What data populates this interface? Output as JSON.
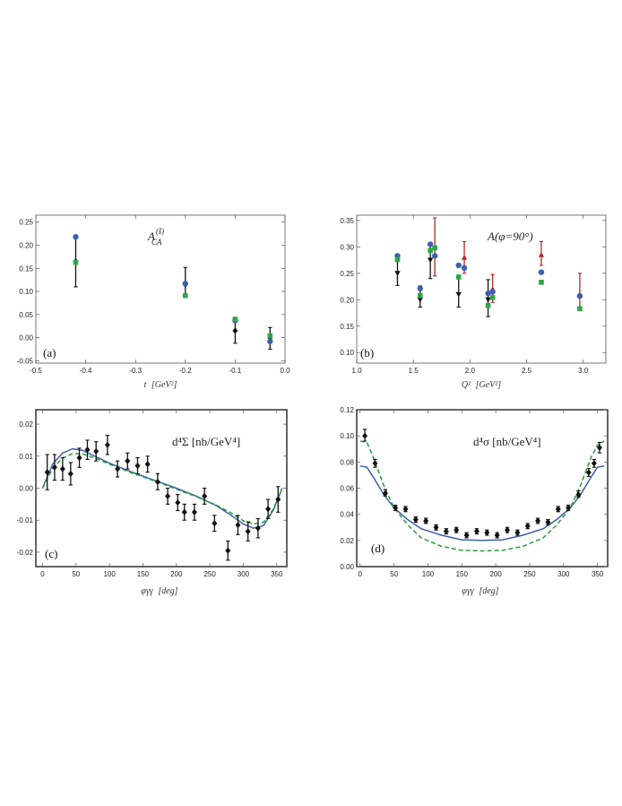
{
  "chart_data": [
    {
      "id": "a",
      "type": "scatter",
      "panel_label": "(a)",
      "annotation": "A_CA^(I)",
      "annotation_main": "A",
      "annotation_sub": "CA",
      "annotation_sup": "(I)",
      "xlabel": "t [GeV²]",
      "xlabel_var": "t",
      "xlabel_unit": "[GeV²]",
      "xlim": [
        -0.5,
        0.0
      ],
      "ylim": [
        -0.055,
        0.265
      ],
      "xticks": [
        -0.5,
        -0.4,
        -0.3,
        -0.2,
        -0.1,
        0.0
      ],
      "xtick_labels": [
        "-0.5",
        "-0.4",
        "-0.3",
        "-0.2",
        "-0.1",
        "0.0"
      ],
      "yticks": [
        -0.05,
        0.0,
        0.05,
        0.1,
        0.15,
        0.2,
        0.25
      ],
      "ytick_labels": [
        "-0.05",
        "0.00",
        "0.05",
        "0.10",
        "0.15",
        "0.20",
        "0.25"
      ],
      "series": [
        {
          "name": "data",
          "marker": "diamond",
          "color": "#111111",
          "points": [
            {
              "x": -0.42,
              "y": 0.165,
              "lo": 0.11,
              "hi": 0.22
            },
            {
              "x": -0.2,
              "y": 0.115,
              "lo": 0.09,
              "hi": 0.152
            },
            {
              "x": -0.1,
              "y": 0.015,
              "lo": -0.012,
              "hi": 0.04
            },
            {
              "x": -0.03,
              "y": 0.0,
              "lo": -0.025,
              "hi": 0.022
            }
          ]
        },
        {
          "name": "blue",
          "marker": "circle",
          "color": "#3f5fae",
          "points": [
            {
              "x": -0.42,
              "y": 0.218
            },
            {
              "x": -0.2,
              "y": 0.117
            },
            {
              "x": -0.1,
              "y": 0.037
            },
            {
              "x": -0.03,
              "y": -0.008
            }
          ]
        },
        {
          "name": "green",
          "marker": "square",
          "color": "#2aa84a",
          "points": [
            {
              "x": -0.42,
              "y": 0.163
            },
            {
              "x": -0.2,
              "y": 0.091
            },
            {
              "x": -0.1,
              "y": 0.04
            },
            {
              "x": -0.03,
              "y": 0.004
            }
          ]
        }
      ],
      "curves": []
    },
    {
      "id": "b",
      "type": "scatter",
      "panel_label": "(b)",
      "annotation": "A(φ=90°)",
      "annotation_main": "A(φ=90°)",
      "xlabel": "Q² [GeV²]",
      "xlabel_var": "Q²",
      "xlabel_unit": "[GeV²]",
      "xlim": [
        1.0,
        3.2
      ],
      "ylim": [
        0.08,
        0.36
      ],
      "xticks": [
        1.0,
        1.5,
        2.0,
        2.5,
        3.0
      ],
      "xtick_labels": [
        "1.0",
        "1.5",
        "2.0",
        "2.5",
        "3.0"
      ],
      "yticks": [
        0.1,
        0.15,
        0.2,
        0.25,
        0.3,
        0.35
      ],
      "ytick_labels": [
        "0.10",
        "0.15",
        "0.20",
        "0.25",
        "0.30",
        "0.35"
      ],
      "series": [
        {
          "name": "data-black",
          "marker": "triangle-down",
          "color": "#111111",
          "points": [
            {
              "x": 1.36,
              "y": 0.25,
              "lo": 0.227,
              "hi": 0.282
            },
            {
              "x": 1.56,
              "y": 0.2,
              "lo": 0.186,
              "hi": 0.226
            },
            {
              "x": 1.65,
              "y": 0.275,
              "lo": 0.24,
              "hi": 0.305
            },
            {
              "x": 1.9,
              "y": 0.21,
              "lo": 0.186,
              "hi": 0.24
            },
            {
              "x": 2.16,
              "y": 0.2,
              "lo": 0.168,
              "hi": 0.238
            }
          ]
        },
        {
          "name": "data-red",
          "marker": "triangle-up",
          "color": "#b02a2a",
          "points": [
            {
              "x": 1.69,
              "y": 0.3,
              "lo": 0.245,
              "hi": 0.355
            },
            {
              "x": 1.95,
              "y": 0.28,
              "lo": 0.25,
              "hi": 0.31
            },
            {
              "x": 2.2,
              "y": 0.22,
              "lo": 0.195,
              "hi": 0.248
            },
            {
              "x": 2.63,
              "y": 0.285,
              "lo": 0.265,
              "hi": 0.31
            },
            {
              "x": 2.97,
              "y": 0.21,
              "lo": 0.18,
              "hi": 0.25
            }
          ]
        },
        {
          "name": "blue",
          "marker": "circle",
          "color": "#3f5fae",
          "points": [
            {
              "x": 1.36,
              "y": 0.283
            },
            {
              "x": 1.56,
              "y": 0.221
            },
            {
              "x": 1.65,
              "y": 0.305
            },
            {
              "x": 1.69,
              "y": 0.283
            },
            {
              "x": 1.9,
              "y": 0.265
            },
            {
              "x": 1.95,
              "y": 0.26
            },
            {
              "x": 2.16,
              "y": 0.212
            },
            {
              "x": 2.2,
              "y": 0.215
            },
            {
              "x": 2.63,
              "y": 0.252
            },
            {
              "x": 2.97,
              "y": 0.207
            }
          ]
        },
        {
          "name": "green",
          "marker": "square",
          "color": "#2aa84a",
          "points": [
            {
              "x": 1.36,
              "y": 0.276
            },
            {
              "x": 1.56,
              "y": 0.208
            },
            {
              "x": 1.65,
              "y": 0.293
            },
            {
              "x": 1.69,
              "y": 0.298
            },
            {
              "x": 1.9,
              "y": 0.243
            },
            {
              "x": 2.16,
              "y": 0.189
            },
            {
              "x": 2.2,
              "y": 0.204
            },
            {
              "x": 2.63,
              "y": 0.233
            },
            {
              "x": 2.97,
              "y": 0.183
            }
          ]
        }
      ],
      "curves": []
    },
    {
      "id": "c",
      "type": "line",
      "panel_label": "(c)",
      "annotation": "d⁴Σ [nb/GeV⁴]",
      "annotation_main": "d⁴Σ [nb/GeV⁴]",
      "xlabel": "φγγ [deg]",
      "xlabel_var": "φγγ",
      "xlabel_unit": "[deg]",
      "xlim": [
        -10,
        365
      ],
      "ylim": [
        -0.0245,
        0.0245
      ],
      "xticks": [
        0,
        50,
        100,
        150,
        200,
        250,
        300,
        350
      ],
      "xtick_labels": [
        "0",
        "50",
        "100",
        "150",
        "200",
        "250",
        "300",
        "350"
      ],
      "yticks": [
        -0.02,
        -0.01,
        0.0,
        0.01,
        0.02
      ],
      "ytick_labels": [
        "-0.02",
        "-0.01",
        "0.00",
        "0.01",
        "0.02"
      ],
      "series": [
        {
          "name": "data",
          "marker": "diamond",
          "color": "#111111",
          "points": [
            {
              "x": 7,
              "y": 0.005,
              "lo": -0.0005,
              "hi": 0.0105
            },
            {
              "x": 18,
              "y": 0.0065,
              "lo": 0.0025,
              "hi": 0.0105
            },
            {
              "x": 30,
              "y": 0.006,
              "lo": 0.0025,
              "hi": 0.0095
            },
            {
              "x": 42,
              "y": 0.0045,
              "lo": 0.001,
              "hi": 0.008
            },
            {
              "x": 55,
              "y": 0.0095,
              "lo": 0.0065,
              "hi": 0.0125
            },
            {
              "x": 67,
              "y": 0.012,
              "lo": 0.009,
              "hi": 0.015
            },
            {
              "x": 80,
              "y": 0.0115,
              "lo": 0.0085,
              "hi": 0.0145
            },
            {
              "x": 97,
              "y": 0.0135,
              "lo": 0.0105,
              "hi": 0.0165
            },
            {
              "x": 112,
              "y": 0.006,
              "lo": 0.0035,
              "hi": 0.0085
            },
            {
              "x": 127,
              "y": 0.0085,
              "lo": 0.006,
              "hi": 0.011
            },
            {
              "x": 142,
              "y": 0.007,
              "lo": 0.0045,
              "hi": 0.0095
            },
            {
              "x": 157,
              "y": 0.0075,
              "lo": 0.005,
              "hi": 0.01
            },
            {
              "x": 172,
              "y": 0.002,
              "lo": -0.0005,
              "hi": 0.0045
            },
            {
              "x": 187,
              "y": -0.0025,
              "lo": -0.005,
              "hi": 0.0
            },
            {
              "x": 202,
              "y": -0.0045,
              "lo": -0.007,
              "hi": -0.002
            },
            {
              "x": 212,
              "y": -0.0075,
              "lo": -0.01,
              "hi": -0.005
            },
            {
              "x": 227,
              "y": -0.0075,
              "lo": -0.01,
              "hi": -0.005
            },
            {
              "x": 242,
              "y": -0.0025,
              "lo": -0.005,
              "hi": 0.0
            },
            {
              "x": 257,
              "y": -0.011,
              "lo": -0.0135,
              "hi": -0.0085
            },
            {
              "x": 277,
              "y": -0.0195,
              "lo": -0.0225,
              "hi": -0.0165
            },
            {
              "x": 292,
              "y": -0.0115,
              "lo": -0.0145,
              "hi": -0.0085
            },
            {
              "x": 307,
              "y": -0.0135,
              "lo": -0.0165,
              "hi": -0.0105
            },
            {
              "x": 322,
              "y": -0.0125,
              "lo": -0.0155,
              "hi": -0.0095
            },
            {
              "x": 337,
              "y": -0.0065,
              "lo": -0.0095,
              "hi": -0.0035
            },
            {
              "x": 352,
              "y": -0.0035,
              "lo": -0.0075,
              "hi": 0.0005
            }
          ]
        }
      ],
      "curves": [
        {
          "name": "blue-solid",
          "color": "#3f5fae",
          "dash": "",
          "x": [
            0,
            15,
            30,
            45,
            60,
            80,
            100,
            130,
            160,
            180,
            200,
            230,
            260,
            280,
            300,
            315,
            330,
            345,
            358
          ],
          "y": [
            0.0,
            0.0075,
            0.011,
            0.0123,
            0.0118,
            0.0098,
            0.0078,
            0.0053,
            0.003,
            0.0015,
            0.0,
            -0.0025,
            -0.0055,
            -0.0082,
            -0.0112,
            -0.0125,
            -0.0117,
            -0.0068,
            0.0
          ]
        },
        {
          "name": "green-dashed",
          "color": "#2c9a3a",
          "dash": "5,3",
          "x": [
            0,
            15,
            30,
            45,
            60,
            80,
            100,
            130,
            160,
            180,
            200,
            230,
            260,
            280,
            300,
            315,
            330,
            345,
            358
          ],
          "y": [
            0.0,
            0.0062,
            0.0095,
            0.0108,
            0.0107,
            0.0093,
            0.0075,
            0.005,
            0.0028,
            0.0013,
            -0.0003,
            -0.0027,
            -0.0053,
            -0.0075,
            -0.0102,
            -0.0112,
            -0.0107,
            -0.0065,
            0.0
          ]
        }
      ]
    },
    {
      "id": "d",
      "type": "line",
      "panel_label": "(d)",
      "annotation": "d⁴σ [nb/GeV⁴]",
      "annotation_main": "d⁴σ [nb/GeV⁴]",
      "xlabel": "φγγ [deg]",
      "xlabel_var": "φγγ",
      "xlabel_unit": "[deg]",
      "xlim": [
        -5,
        365
      ],
      "ylim": [
        0.0,
        0.12
      ],
      "xticks": [
        0,
        50,
        100,
        150,
        200,
        250,
        300,
        350
      ],
      "xtick_labels": [
        "0",
        "50",
        "100",
        "150",
        "200",
        "250",
        "300",
        "350"
      ],
      "yticks": [
        0.0,
        0.02,
        0.04,
        0.06,
        0.08,
        0.1,
        0.12
      ],
      "ytick_labels": [
        "0.00",
        "0.02",
        "0.04",
        "0.06",
        "0.08",
        "0.10",
        "0.12"
      ],
      "series": [
        {
          "name": "data",
          "marker": "diamond",
          "color": "#111111",
          "points": [
            {
              "x": 7,
              "y": 0.1,
              "lo": 0.096,
              "hi": 0.105
            },
            {
              "x": 22,
              "y": 0.079,
              "lo": 0.076,
              "hi": 0.082
            },
            {
              "x": 37,
              "y": 0.056,
              "lo": 0.054,
              "hi": 0.059
            },
            {
              "x": 52,
              "y": 0.045,
              "lo": 0.043,
              "hi": 0.047
            },
            {
              "x": 67,
              "y": 0.044,
              "lo": 0.042,
              "hi": 0.046
            },
            {
              "x": 82,
              "y": 0.036,
              "lo": 0.034,
              "hi": 0.038
            },
            {
              "x": 97,
              "y": 0.035,
              "lo": 0.033,
              "hi": 0.037
            },
            {
              "x": 112,
              "y": 0.03,
              "lo": 0.028,
              "hi": 0.032
            },
            {
              "x": 127,
              "y": 0.027,
              "lo": 0.025,
              "hi": 0.029
            },
            {
              "x": 142,
              "y": 0.028,
              "lo": 0.026,
              "hi": 0.03
            },
            {
              "x": 157,
              "y": 0.024,
              "lo": 0.022,
              "hi": 0.026
            },
            {
              "x": 172,
              "y": 0.027,
              "lo": 0.025,
              "hi": 0.029
            },
            {
              "x": 187,
              "y": 0.026,
              "lo": 0.024,
              "hi": 0.028
            },
            {
              "x": 202,
              "y": 0.024,
              "lo": 0.022,
              "hi": 0.026
            },
            {
              "x": 217,
              "y": 0.028,
              "lo": 0.026,
              "hi": 0.03
            },
            {
              "x": 232,
              "y": 0.026,
              "lo": 0.024,
              "hi": 0.028
            },
            {
              "x": 247,
              "y": 0.031,
              "lo": 0.029,
              "hi": 0.033
            },
            {
              "x": 262,
              "y": 0.035,
              "lo": 0.033,
              "hi": 0.037
            },
            {
              "x": 277,
              "y": 0.034,
              "lo": 0.032,
              "hi": 0.036
            },
            {
              "x": 292,
              "y": 0.044,
              "lo": 0.042,
              "hi": 0.046
            },
            {
              "x": 307,
              "y": 0.045,
              "lo": 0.043,
              "hi": 0.047
            },
            {
              "x": 322,
              "y": 0.055,
              "lo": 0.053,
              "hi": 0.058
            },
            {
              "x": 337,
              "y": 0.072,
              "lo": 0.069,
              "hi": 0.075
            },
            {
              "x": 345,
              "y": 0.079,
              "lo": 0.076,
              "hi": 0.082
            },
            {
              "x": 353,
              "y": 0.091,
              "lo": 0.087,
              "hi": 0.095
            }
          ]
        }
      ],
      "curves": [
        {
          "name": "blue-solid",
          "color": "#3f5fae",
          "dash": "",
          "x": [
            0,
            10,
            20,
            35,
            50,
            70,
            90,
            120,
            150,
            180,
            210,
            240,
            270,
            290,
            310,
            325,
            340,
            350,
            360
          ],
          "y": [
            0.077,
            0.076,
            0.068,
            0.055,
            0.045,
            0.036,
            0.029,
            0.024,
            0.0205,
            0.02,
            0.0205,
            0.024,
            0.029,
            0.036,
            0.045,
            0.055,
            0.068,
            0.076,
            0.077
          ]
        },
        {
          "name": "green-dashed",
          "color": "#2c9a3a",
          "dash": "5,3",
          "x": [
            0,
            10,
            20,
            35,
            50,
            70,
            90,
            120,
            150,
            180,
            210,
            240,
            270,
            290,
            310,
            325,
            340,
            350,
            360
          ],
          "y": [
            0.096,
            0.095,
            0.083,
            0.062,
            0.045,
            0.032,
            0.022,
            0.0155,
            0.0125,
            0.012,
            0.0125,
            0.0155,
            0.022,
            0.032,
            0.045,
            0.062,
            0.083,
            0.093,
            0.096
          ]
        }
      ]
    }
  ]
}
